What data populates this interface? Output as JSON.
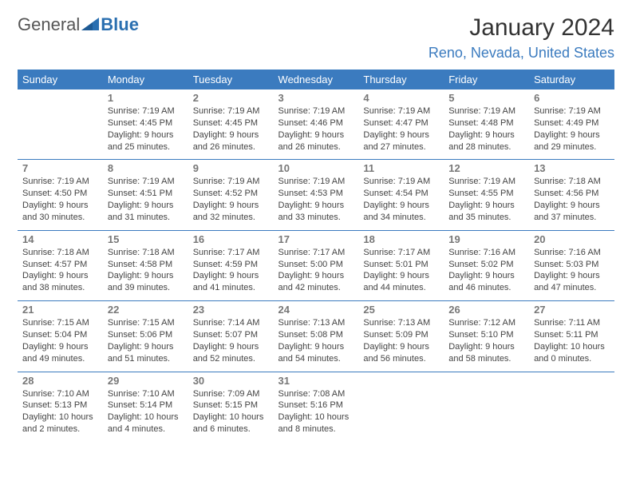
{
  "logo": {
    "text1": "General",
    "text2": "Blue"
  },
  "title": "January 2024",
  "location": "Reno, Nevada, United States",
  "colors": {
    "accent": "#3b7bbf",
    "header_bg": "#3b7bbf",
    "header_text": "#ffffff",
    "border": "#3b7bbf",
    "daynum": "#777777",
    "info_text": "#444444",
    "background": "#ffffff"
  },
  "daysOfWeek": [
    "Sunday",
    "Monday",
    "Tuesday",
    "Wednesday",
    "Thursday",
    "Friday",
    "Saturday"
  ],
  "weeks": [
    [
      null,
      {
        "n": "1",
        "sr": "Sunrise: 7:19 AM",
        "ss": "Sunset: 4:45 PM",
        "d1": "Daylight: 9 hours",
        "d2": "and 25 minutes."
      },
      {
        "n": "2",
        "sr": "Sunrise: 7:19 AM",
        "ss": "Sunset: 4:45 PM",
        "d1": "Daylight: 9 hours",
        "d2": "and 26 minutes."
      },
      {
        "n": "3",
        "sr": "Sunrise: 7:19 AM",
        "ss": "Sunset: 4:46 PM",
        "d1": "Daylight: 9 hours",
        "d2": "and 26 minutes."
      },
      {
        "n": "4",
        "sr": "Sunrise: 7:19 AM",
        "ss": "Sunset: 4:47 PM",
        "d1": "Daylight: 9 hours",
        "d2": "and 27 minutes."
      },
      {
        "n": "5",
        "sr": "Sunrise: 7:19 AM",
        "ss": "Sunset: 4:48 PM",
        "d1": "Daylight: 9 hours",
        "d2": "and 28 minutes."
      },
      {
        "n": "6",
        "sr": "Sunrise: 7:19 AM",
        "ss": "Sunset: 4:49 PM",
        "d1": "Daylight: 9 hours",
        "d2": "and 29 minutes."
      }
    ],
    [
      {
        "n": "7",
        "sr": "Sunrise: 7:19 AM",
        "ss": "Sunset: 4:50 PM",
        "d1": "Daylight: 9 hours",
        "d2": "and 30 minutes."
      },
      {
        "n": "8",
        "sr": "Sunrise: 7:19 AM",
        "ss": "Sunset: 4:51 PM",
        "d1": "Daylight: 9 hours",
        "d2": "and 31 minutes."
      },
      {
        "n": "9",
        "sr": "Sunrise: 7:19 AM",
        "ss": "Sunset: 4:52 PM",
        "d1": "Daylight: 9 hours",
        "d2": "and 32 minutes."
      },
      {
        "n": "10",
        "sr": "Sunrise: 7:19 AM",
        "ss": "Sunset: 4:53 PM",
        "d1": "Daylight: 9 hours",
        "d2": "and 33 minutes."
      },
      {
        "n": "11",
        "sr": "Sunrise: 7:19 AM",
        "ss": "Sunset: 4:54 PM",
        "d1": "Daylight: 9 hours",
        "d2": "and 34 minutes."
      },
      {
        "n": "12",
        "sr": "Sunrise: 7:19 AM",
        "ss": "Sunset: 4:55 PM",
        "d1": "Daylight: 9 hours",
        "d2": "and 35 minutes."
      },
      {
        "n": "13",
        "sr": "Sunrise: 7:18 AM",
        "ss": "Sunset: 4:56 PM",
        "d1": "Daylight: 9 hours",
        "d2": "and 37 minutes."
      }
    ],
    [
      {
        "n": "14",
        "sr": "Sunrise: 7:18 AM",
        "ss": "Sunset: 4:57 PM",
        "d1": "Daylight: 9 hours",
        "d2": "and 38 minutes."
      },
      {
        "n": "15",
        "sr": "Sunrise: 7:18 AM",
        "ss": "Sunset: 4:58 PM",
        "d1": "Daylight: 9 hours",
        "d2": "and 39 minutes."
      },
      {
        "n": "16",
        "sr": "Sunrise: 7:17 AM",
        "ss": "Sunset: 4:59 PM",
        "d1": "Daylight: 9 hours",
        "d2": "and 41 minutes."
      },
      {
        "n": "17",
        "sr": "Sunrise: 7:17 AM",
        "ss": "Sunset: 5:00 PM",
        "d1": "Daylight: 9 hours",
        "d2": "and 42 minutes."
      },
      {
        "n": "18",
        "sr": "Sunrise: 7:17 AM",
        "ss": "Sunset: 5:01 PM",
        "d1": "Daylight: 9 hours",
        "d2": "and 44 minutes."
      },
      {
        "n": "19",
        "sr": "Sunrise: 7:16 AM",
        "ss": "Sunset: 5:02 PM",
        "d1": "Daylight: 9 hours",
        "d2": "and 46 minutes."
      },
      {
        "n": "20",
        "sr": "Sunrise: 7:16 AM",
        "ss": "Sunset: 5:03 PM",
        "d1": "Daylight: 9 hours",
        "d2": "and 47 minutes."
      }
    ],
    [
      {
        "n": "21",
        "sr": "Sunrise: 7:15 AM",
        "ss": "Sunset: 5:04 PM",
        "d1": "Daylight: 9 hours",
        "d2": "and 49 minutes."
      },
      {
        "n": "22",
        "sr": "Sunrise: 7:15 AM",
        "ss": "Sunset: 5:06 PM",
        "d1": "Daylight: 9 hours",
        "d2": "and 51 minutes."
      },
      {
        "n": "23",
        "sr": "Sunrise: 7:14 AM",
        "ss": "Sunset: 5:07 PM",
        "d1": "Daylight: 9 hours",
        "d2": "and 52 minutes."
      },
      {
        "n": "24",
        "sr": "Sunrise: 7:13 AM",
        "ss": "Sunset: 5:08 PM",
        "d1": "Daylight: 9 hours",
        "d2": "and 54 minutes."
      },
      {
        "n": "25",
        "sr": "Sunrise: 7:13 AM",
        "ss": "Sunset: 5:09 PM",
        "d1": "Daylight: 9 hours",
        "d2": "and 56 minutes."
      },
      {
        "n": "26",
        "sr": "Sunrise: 7:12 AM",
        "ss": "Sunset: 5:10 PM",
        "d1": "Daylight: 9 hours",
        "d2": "and 58 minutes."
      },
      {
        "n": "27",
        "sr": "Sunrise: 7:11 AM",
        "ss": "Sunset: 5:11 PM",
        "d1": "Daylight: 10 hours",
        "d2": "and 0 minutes."
      }
    ],
    [
      {
        "n": "28",
        "sr": "Sunrise: 7:10 AM",
        "ss": "Sunset: 5:13 PM",
        "d1": "Daylight: 10 hours",
        "d2": "and 2 minutes."
      },
      {
        "n": "29",
        "sr": "Sunrise: 7:10 AM",
        "ss": "Sunset: 5:14 PM",
        "d1": "Daylight: 10 hours",
        "d2": "and 4 minutes."
      },
      {
        "n": "30",
        "sr": "Sunrise: 7:09 AM",
        "ss": "Sunset: 5:15 PM",
        "d1": "Daylight: 10 hours",
        "d2": "and 6 minutes."
      },
      {
        "n": "31",
        "sr": "Sunrise: 7:08 AM",
        "ss": "Sunset: 5:16 PM",
        "d1": "Daylight: 10 hours",
        "d2": "and 8 minutes."
      },
      null,
      null,
      null
    ]
  ]
}
